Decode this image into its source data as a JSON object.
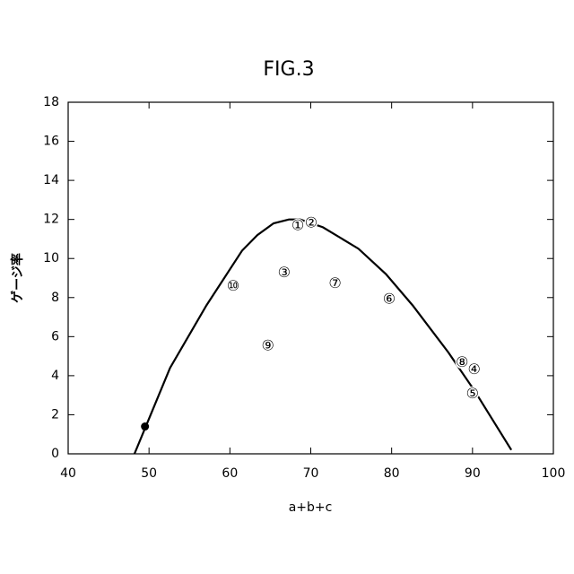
{
  "chart_data": {
    "type": "line",
    "title": "FIG.3",
    "xlabel": "a+b+c",
    "ylabel": "ゲージ率",
    "xlim": [
      40,
      100
    ],
    "xticks": [
      40,
      50,
      60,
      70,
      80,
      90,
      100
    ],
    "ylim": [
      0,
      18
    ],
    "yticks": [
      0,
      2,
      4,
      6,
      8,
      10,
      12,
      14,
      16,
      18
    ],
    "color": "#000000",
    "x": [
      48.2,
      50,
      52.6,
      57.1,
      61.5,
      63.4,
      65.4,
      67.3,
      68.7,
      71.5,
      75.9,
      79.3,
      82.6,
      87.0,
      90.3,
      94.8
    ],
    "values": [
      0,
      1.8,
      4.4,
      7.6,
      10.4,
      11.2,
      11.8,
      12.0,
      12.0,
      11.6,
      10.5,
      9.2,
      7.6,
      5.2,
      3.2,
      0.2
    ],
    "marker": {
      "x": 49.5,
      "y": 1.4
    },
    "points": [
      {
        "label": "①",
        "x": 68.4,
        "y": 11.7
      },
      {
        "label": "②",
        "x": 70.05,
        "y": 11.85
      },
      {
        "label": "③",
        "x": 66.7,
        "y": 9.3
      },
      {
        "label": "④",
        "x": 90.2,
        "y": 4.35
      },
      {
        "label": "⑤",
        "x": 90.0,
        "y": 3.1
      },
      {
        "label": "⑥",
        "x": 79.7,
        "y": 7.95
      },
      {
        "label": "⑦",
        "x": 73.0,
        "y": 8.75
      },
      {
        "label": "⑧",
        "x": 88.7,
        "y": 4.7
      },
      {
        "label": "⑨",
        "x": 64.7,
        "y": 5.55
      },
      {
        "label": "⑩",
        "x": 60.4,
        "y": 8.6
      }
    ]
  }
}
